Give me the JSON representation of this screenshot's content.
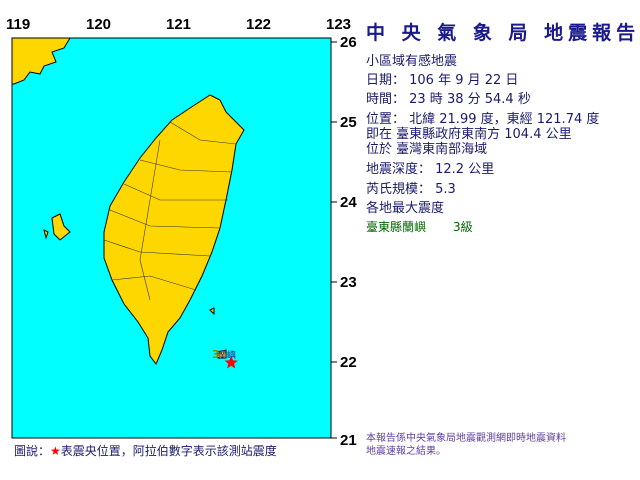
{
  "map": {
    "lon_ticks": [
      "119",
      "120",
      "121",
      "122",
      "123"
    ],
    "lat_ticks": [
      "26",
      "25",
      "24",
      "23",
      "22",
      "21"
    ],
    "sea_color": "#00ffff",
    "land_color": "#ffd700",
    "epicenter": {
      "lat": 21.99,
      "lon": 121.74,
      "marker": "red-star",
      "color": "#ff0000"
    },
    "station": {
      "name": "蘭嶼",
      "intensity": "3"
    }
  },
  "report": {
    "title": "中 央 氣 象 局 地震報告",
    "subtitle": "小區域有感地震",
    "date": "日期： 106 年 9 月 22 日",
    "time": "時間： 23 時 38 分 54.4 秒",
    "position": "位置： 北緯 21.99 度，東經 121.74 度",
    "relative": "即在 臺東縣政府東南方 104.4 公里",
    "region": "位於 臺灣東南部海域",
    "depth": "地震深度： 12.2 公里",
    "magnitude": "芮氏規模： 5.3",
    "max_intensity_header": "各地最大震度",
    "intensities": [
      {
        "place": "臺東縣蘭嶼",
        "level": "3級"
      }
    ]
  },
  "legend": {
    "prefix": "圖說：",
    "star": "★",
    "text": "表震央位置，阿拉伯數字表示該測站震度"
  },
  "note": {
    "line1": "本報告係中央氣象局地震觀測網即時地震資料",
    "line2": "地震速報之結果。"
  }
}
